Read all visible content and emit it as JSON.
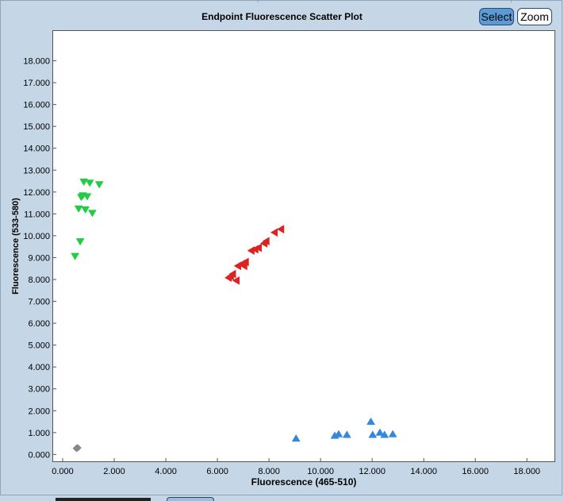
{
  "header": {
    "select_label": "Select",
    "zoom_label": "Zoom"
  },
  "chart_data": {
    "type": "scatter",
    "title": "Endpoint Fluorescence Scatter Plot",
    "xlabel": "Fluorescence (465-510)",
    "ylabel": "Fluorescence (533-580)",
    "xlim": [
      -0.4,
      19.1
    ],
    "ylim": [
      -0.35,
      19.4
    ],
    "x_ticks": [
      "0.000",
      "2.000",
      "4.000",
      "6.000",
      "8.000",
      "10.000",
      "12.000",
      "14.000",
      "16.000",
      "18.000"
    ],
    "y_ticks": [
      "0.000",
      "1.000",
      "2.000",
      "3.000",
      "4.000",
      "5.000",
      "6.000",
      "7.000",
      "8.000",
      "9.000",
      "10.000",
      "11.000",
      "12.000",
      "13.000",
      "14.000",
      "15.000",
      "16.000",
      "17.000",
      "18.000"
    ],
    "grid": false,
    "series": [
      {
        "marker": "triangle-down",
        "color": "#22cc44",
        "x": [
          0.82,
          1.05,
          1.42,
          0.78,
          0.72,
          0.95,
          0.62,
          0.88,
          1.15,
          0.68,
          0.48
        ],
        "y": [
          12.45,
          12.4,
          12.33,
          11.82,
          11.75,
          11.78,
          11.22,
          11.18,
          11.02,
          9.72,
          9.05
        ]
      },
      {
        "marker": "triangle-left",
        "color": "#dd2222",
        "x": [
          8.45,
          8.2,
          7.88,
          7.8,
          7.58,
          7.45,
          7.3,
          7.08,
          6.95,
          7.02,
          6.78,
          6.58,
          6.5,
          6.42,
          6.72
        ],
        "y": [
          10.3,
          10.15,
          9.75,
          9.65,
          9.45,
          9.38,
          9.32,
          8.8,
          8.72,
          8.62,
          8.62,
          8.25,
          8.15,
          8.08,
          7.95
        ]
      },
      {
        "marker": "triangle-up",
        "color": "#3388dd",
        "x": [
          9.05,
          10.55,
          10.7,
          11.02,
          11.95,
          12.02,
          12.3,
          12.48,
          12.8
        ],
        "y": [
          0.75,
          0.88,
          0.95,
          0.92,
          1.52,
          0.92,
          1.02,
          0.92,
          0.95
        ]
      },
      {
        "marker": "diamond",
        "color": "#888888",
        "x": [
          0.52,
          0.56,
          0.6,
          0.54
        ],
        "y": [
          0.28,
          0.32,
          0.3,
          0.26
        ]
      }
    ]
  }
}
